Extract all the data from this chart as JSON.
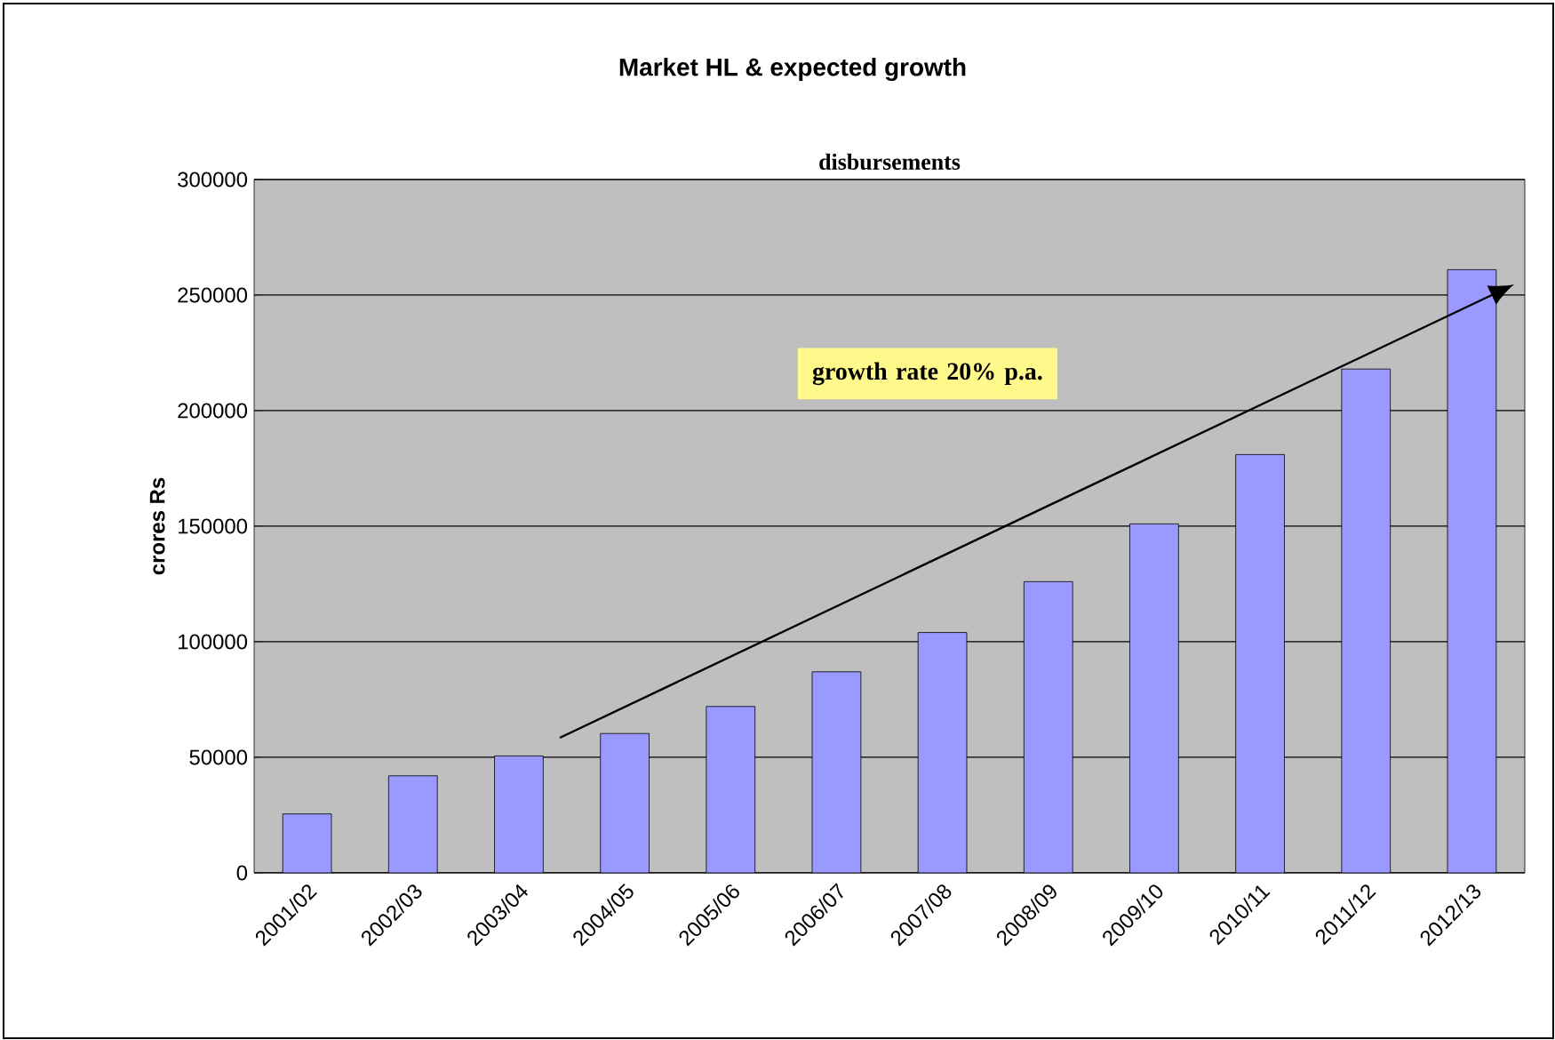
{
  "chart_data": {
    "type": "bar",
    "title": "Market HL & expected growth",
    "subtitle": "disbursements",
    "ylabel": "crores Rs",
    "categories": [
      "2001/02",
      "2002/03",
      "2003/04",
      "2004/05",
      "2005/06",
      "2006/07",
      "2007/08",
      "2008/09",
      "2009/10",
      "2010/11",
      "2011/12",
      "2012/13"
    ],
    "values": [
      25500,
      42000,
      50600,
      60300,
      72000,
      87000,
      104000,
      126000,
      151000,
      181000,
      218000,
      261000
    ],
    "color": "#9999ff",
    "ylim": [
      0,
      300000
    ],
    "yticks": [
      0,
      50000,
      100000,
      150000,
      200000,
      250000,
      300000
    ],
    "grid": "y",
    "annotations": [
      "growth rate 20% p.a."
    ]
  }
}
